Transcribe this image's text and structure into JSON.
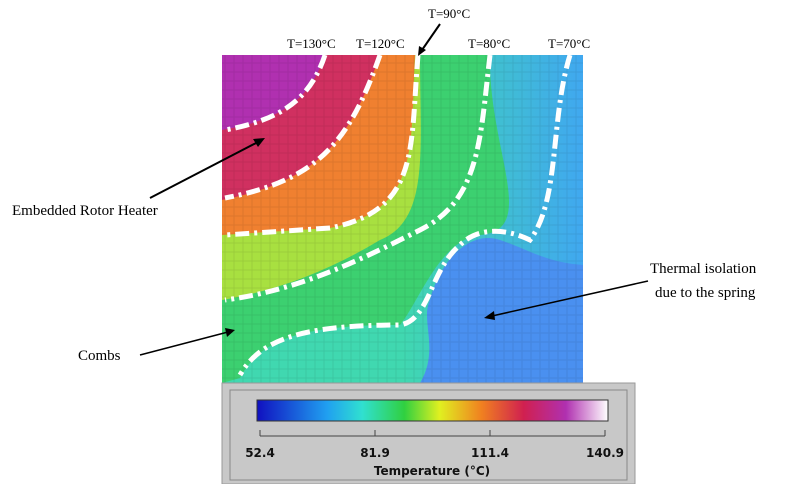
{
  "isotherms": [
    "T=130°C",
    "T=120°C",
    "T=90°C",
    "T=80°C",
    "T=70°C"
  ],
  "annotations": {
    "heater": "Embedded Rotor Heater",
    "combs": "Combs",
    "isolation": [
      "Thermal isolation",
      "due to the spring"
    ]
  },
  "colorbar": {
    "label": "Temperature (°C)",
    "ticks": [
      52.4,
      81.9,
      111.4,
      140.9
    ]
  }
}
